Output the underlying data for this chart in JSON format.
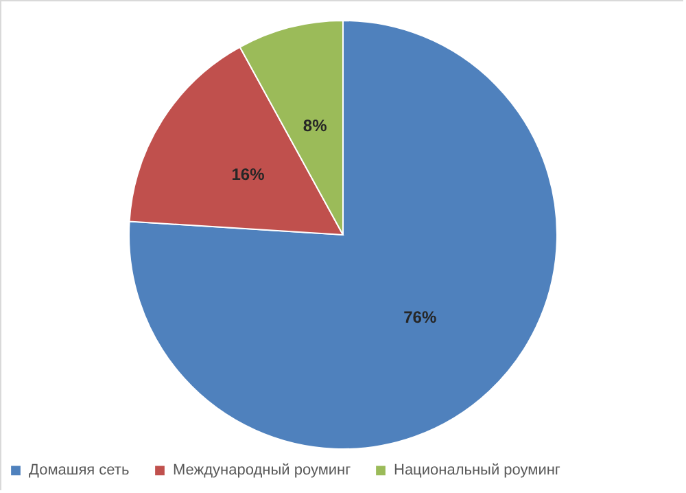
{
  "chart_data": {
    "type": "pie",
    "categories": [
      "Домашяя сеть",
      "Международный роуминг",
      "Национальный роуминг"
    ],
    "values": [
      76,
      16,
      8
    ],
    "colors": [
      "#4f81bd",
      "#c0504d",
      "#9bbb59"
    ],
    "value_labels": [
      "76%",
      "16%",
      "8%"
    ],
    "legend": "bottom"
  }
}
